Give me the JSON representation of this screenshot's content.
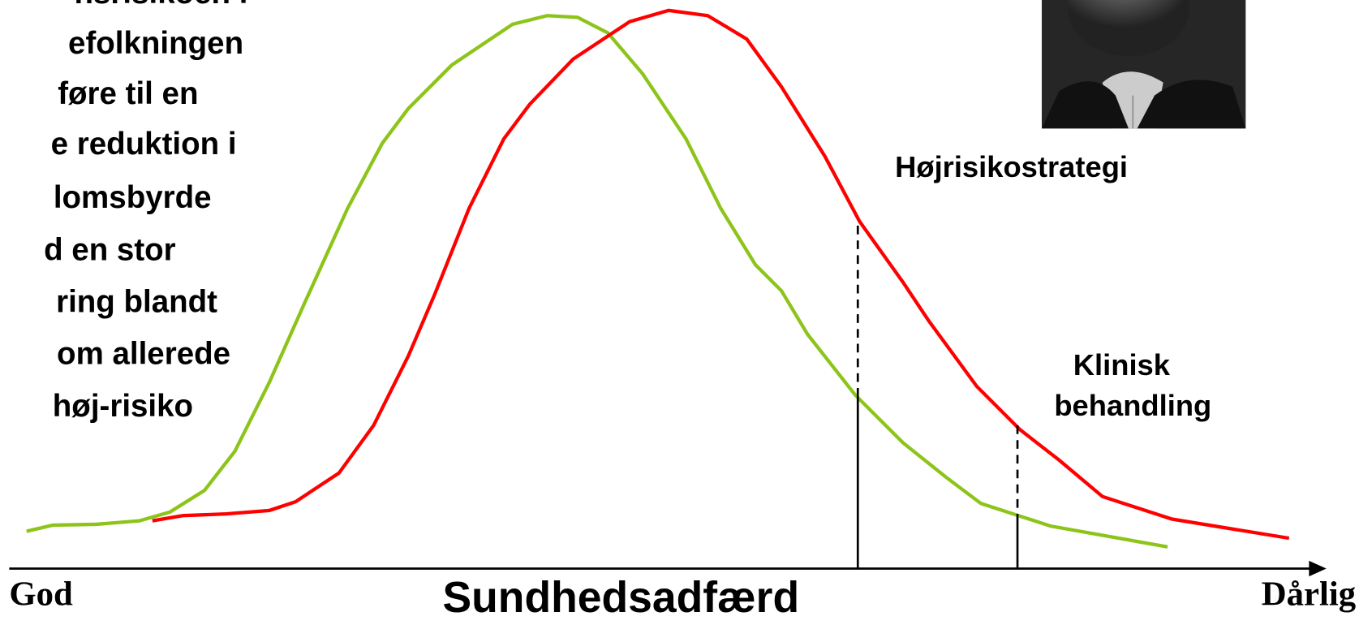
{
  "left_text": {
    "lines": [
      "nsrisikoen i",
      "efolkningen",
      "føre til en",
      "e reduktion i",
      "lomsbyrde",
      "d en stor",
      "ring blandt",
      "om allerede",
      "høj-risiko"
    ]
  },
  "labels": {
    "high_risk": "Højrisikostrategi",
    "clinical_1": "Klinisk",
    "clinical_2": "behandling"
  },
  "axis": {
    "left": "God",
    "title": "Sundhedsadfærd",
    "right": "Dårlig"
  }
}
